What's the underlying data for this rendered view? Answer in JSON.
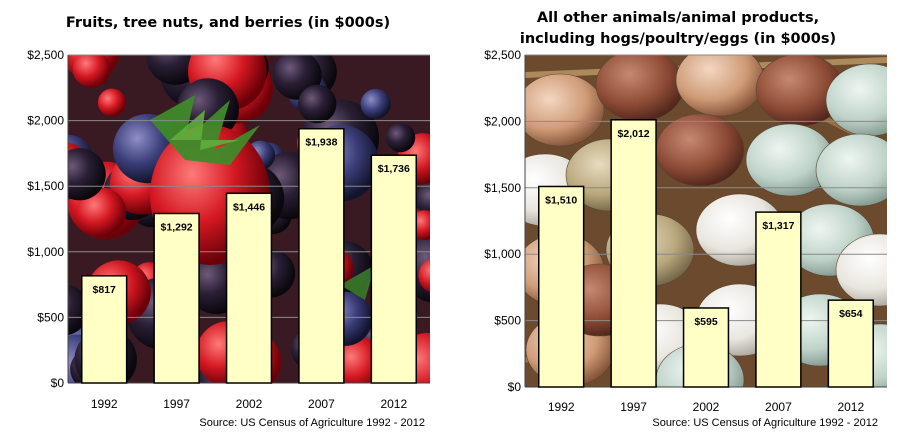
{
  "chart_data": [
    {
      "type": "bar",
      "title": "Fruits, tree nuts, and berries  (in $000s)",
      "categories": [
        "1992",
        "1997",
        "2002",
        "2007",
        "2012"
      ],
      "values": [
        817,
        1292,
        1446,
        1938,
        1736
      ],
      "data_labels": [
        "$817",
        "$1,292",
        "$1,446",
        "$1,938",
        "$1,736"
      ],
      "ylim": [
        0,
        2500
      ],
      "yticks": [
        0,
        500,
        1000,
        1500,
        2000,
        2500
      ],
      "ytick_labels": [
        "$0",
        "$500",
        "$1,000",
        "$1,500",
        "$2,000",
        "$2,500"
      ],
      "grid": true,
      "bar_color": "#ffffc6",
      "background": "berries-photo",
      "source": "Source: US Census of Agriculture 1992 - 2012"
    },
    {
      "type": "bar",
      "title": [
        "All other animals/animal products,",
        "including hogs/poultry/eggs (in $000s)"
      ],
      "categories": [
        "1992",
        "1997",
        "2002",
        "2007",
        "2012"
      ],
      "values": [
        1510,
        2012,
        595,
        1317,
        654
      ],
      "data_labels": [
        "$1,510",
        "$2,012",
        "$595",
        "$1,317",
        "$654"
      ],
      "ylim": [
        0,
        2500
      ],
      "yticks": [
        0,
        500,
        1000,
        1500,
        2000,
        2500
      ],
      "ytick_labels": [
        "$0",
        "$500",
        "$1,000",
        "$1,500",
        "$2,000",
        "$2,500"
      ],
      "grid": true,
      "bar_color": "#ffffc6",
      "background": "eggs-photo",
      "source": "Source: US Census of Agriculture 1992 - 2012"
    }
  ]
}
